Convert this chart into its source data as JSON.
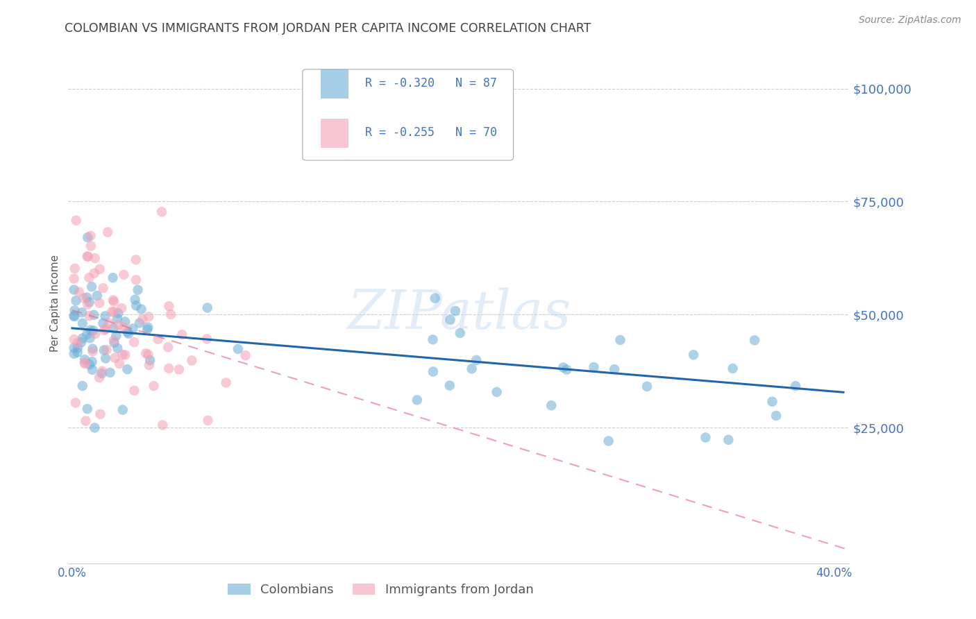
{
  "title": "COLOMBIAN VS IMMIGRANTS FROM JORDAN PER CAPITA INCOME CORRELATION CHART",
  "source": "Source: ZipAtlas.com",
  "ylabel": "Per Capita Income",
  "watermark": "ZIPatlas",
  "xlim": [
    -0.002,
    0.408
  ],
  "ylim": [
    -5000,
    110000
  ],
  "yticks": [
    25000,
    50000,
    75000,
    100000
  ],
  "ytick_labels": [
    "$25,000",
    "$50,000",
    "$75,000",
    "$100,000"
  ],
  "xticks": [
    0.0,
    0.1,
    0.2,
    0.3,
    0.4
  ],
  "xtick_labels": [
    "0.0%",
    "",
    "",
    "",
    "40.0%"
  ],
  "blue_label": "Colombians",
  "pink_label": "Immigrants from Jordan",
  "blue_R": "-0.320",
  "blue_N": "87",
  "pink_R": "-0.255",
  "pink_N": "70",
  "blue_color": "#6baed6",
  "pink_color": "#f4a0b5",
  "trend_blue": "#2166ac",
  "trend_pink": "#e07090",
  "axis_color": "#4472c4",
  "title_color": "#404040",
  "source_color": "#888888",
  "background_color": "#ffffff",
  "blue_intercept": 47000,
  "blue_slope": -35000,
  "pink_intercept": 51000,
  "pink_slope": -130000
}
